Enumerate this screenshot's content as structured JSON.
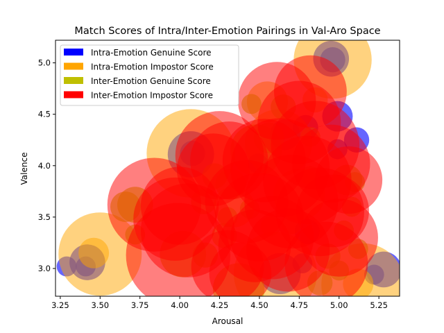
{
  "chart_data": {
    "type": "scatter",
    "title": "Match Scores of Intra/Inter-Emotion Pairings in Val-Aro Space",
    "xlabel": "Arousal",
    "ylabel": "Valence",
    "xlim": [
      3.22,
      5.38
    ],
    "ylim": [
      2.73,
      5.22
    ],
    "xticks": [
      "3.25",
      "3.50",
      "3.75",
      "4.00",
      "4.25",
      "4.50",
      "4.75",
      "5.00",
      "5.25"
    ],
    "yticks": [
      "3.0",
      "3.5",
      "4.0",
      "4.5",
      "5.0"
    ],
    "grid": false,
    "legend_position": "top-left",
    "marker_size_note": "bubble size encodes match score",
    "series": [
      {
        "name": "Intra-Emotion Genuine Score",
        "color": "#0000ff",
        "points": [
          {
            "x": 3.29,
            "y": 3.02,
            "size": 0.3
          },
          {
            "x": 3.42,
            "y": 3.06,
            "size": 0.6
          },
          {
            "x": 3.41,
            "y": 3.02,
            "size": 0.3
          },
          {
            "x": 4.08,
            "y": 4.12,
            "size": 0.4
          },
          {
            "x": 4.07,
            "y": 4.11,
            "size": 0.8
          },
          {
            "x": 4.49,
            "y": 4.02,
            "size": 0.3
          },
          {
            "x": 4.79,
            "y": 4.37,
            "size": 0.4
          },
          {
            "x": 4.8,
            "y": 3.36,
            "size": 0.4
          },
          {
            "x": 4.66,
            "y": 4.3,
            "size": 0.5
          },
          {
            "x": 4.95,
            "y": 5.04,
            "size": 0.6
          },
          {
            "x": 4.96,
            "y": 5.03,
            "size": 0.4
          },
          {
            "x": 4.99,
            "y": 4.48,
            "size": 0.5
          },
          {
            "x": 4.99,
            "y": 4.16,
            "size": 0.3
          },
          {
            "x": 5.11,
            "y": 4.25,
            "size": 0.4
          },
          {
            "x": 5.28,
            "y": 2.99,
            "size": 0.6
          },
          {
            "x": 5.22,
            "y": 2.94,
            "size": 0.3
          },
          {
            "x": 4.77,
            "y": 3.05,
            "size": 0.3
          },
          {
            "x": 4.63,
            "y": 2.95,
            "size": 0.7
          }
        ]
      },
      {
        "name": "Intra-Emotion Impostor Score",
        "color": "#ffa500",
        "points": [
          {
            "x": 3.5,
            "y": 3.14,
            "size": 1.5
          },
          {
            "x": 3.46,
            "y": 3.15,
            "size": 0.5
          },
          {
            "x": 4.07,
            "y": 4.12,
            "size": 1.6
          },
          {
            "x": 4.62,
            "y": 4.22,
            "size": 1.2
          },
          {
            "x": 4.96,
            "y": 5.03,
            "size": 1.4
          },
          {
            "x": 4.55,
            "y": 4.62,
            "size": 0.7
          },
          {
            "x": 4.6,
            "y": 2.95,
            "size": 1.5
          },
          {
            "x": 5.15,
            "y": 2.84,
            "size": 1.5
          },
          {
            "x": 5.12,
            "y": 2.85,
            "size": 0.5
          },
          {
            "x": 4.85,
            "y": 4.64,
            "size": 0.4
          },
          {
            "x": 4.75,
            "y": 3.72,
            "size": 0.9
          },
          {
            "x": 4.34,
            "y": 3.6,
            "size": 0.7
          }
        ]
      },
      {
        "name": "Inter-Emotion Genuine Score",
        "color": "#bfbf00",
        "points": [
          {
            "x": 3.72,
            "y": 3.62,
            "size": 0.6
          },
          {
            "x": 3.66,
            "y": 3.6,
            "size": 0.5
          },
          {
            "x": 3.72,
            "y": 3.33,
            "size": 0.3
          },
          {
            "x": 4.02,
            "y": 3.14,
            "size": 0.8
          },
          {
            "x": 4.15,
            "y": 3.65,
            "size": 0.4
          },
          {
            "x": 4.16,
            "y": 3.13,
            "size": 0.4
          },
          {
            "x": 4.28,
            "y": 3.32,
            "size": 0.4
          },
          {
            "x": 4.3,
            "y": 3.5,
            "size": 0.3
          },
          {
            "x": 4.37,
            "y": 2.8,
            "size": 0.9
          },
          {
            "x": 4.44,
            "y": 3.58,
            "size": 0.3
          },
          {
            "x": 4.45,
            "y": 4.6,
            "size": 0.3
          },
          {
            "x": 4.48,
            "y": 4.15,
            "size": 0.9
          },
          {
            "x": 4.56,
            "y": 4.27,
            "size": 0.5
          },
          {
            "x": 4.57,
            "y": 3.41,
            "size": 0.3
          },
          {
            "x": 4.65,
            "y": 4.57,
            "size": 0.4
          },
          {
            "x": 4.7,
            "y": 3.43,
            "size": 0.3
          },
          {
            "x": 4.82,
            "y": 3.9,
            "size": 0.3
          },
          {
            "x": 4.82,
            "y": 4.28,
            "size": 0.3
          },
          {
            "x": 4.88,
            "y": 2.86,
            "size": 0.4
          },
          {
            "x": 4.93,
            "y": 3.12,
            "size": 0.4
          },
          {
            "x": 5.0,
            "y": 2.98,
            "size": 0.3
          },
          {
            "x": 5.03,
            "y": 3.37,
            "size": 0.3
          },
          {
            "x": 5.05,
            "y": 3.86,
            "size": 0.5
          },
          {
            "x": 5.1,
            "y": 3.84,
            "size": 0.3
          },
          {
            "x": 5.12,
            "y": 3.19,
            "size": 0.3
          },
          {
            "x": 5.08,
            "y": 3.6,
            "size": 0.3
          },
          {
            "x": 4.22,
            "y": 3.9,
            "size": 0.4
          },
          {
            "x": 4.32,
            "y": 3.82,
            "size": 0.5
          }
        ]
      },
      {
        "name": "Inter-Emotion Impostor Score",
        "color": "#ff0000",
        "points": [
          {
            "x": 3.84,
            "y": 3.62,
            "size": 1.7
          },
          {
            "x": 3.99,
            "y": 3.13,
            "size": 1.9
          },
          {
            "x": 3.97,
            "y": 3.48,
            "size": 1.5
          },
          {
            "x": 4.05,
            "y": 3.37,
            "size": 1.7
          },
          {
            "x": 4.0,
            "y": 3.61,
            "size": 1.4
          },
          {
            "x": 4.25,
            "y": 4.1,
            "size": 1.6
          },
          {
            "x": 4.21,
            "y": 3.96,
            "size": 1.3
          },
          {
            "x": 4.31,
            "y": 4.05,
            "size": 1.4
          },
          {
            "x": 4.3,
            "y": 3.02,
            "size": 1.3
          },
          {
            "x": 4.38,
            "y": 2.95,
            "size": 1.1
          },
          {
            "x": 4.42,
            "y": 3.65,
            "size": 1.5
          },
          {
            "x": 4.5,
            "y": 3.5,
            "size": 1.6
          },
          {
            "x": 4.53,
            "y": 4.05,
            "size": 1.5
          },
          {
            "x": 4.58,
            "y": 3.3,
            "size": 1.5
          },
          {
            "x": 4.61,
            "y": 4.63,
            "size": 1.4
          },
          {
            "x": 4.63,
            "y": 3.98,
            "size": 1.8
          },
          {
            "x": 4.7,
            "y": 3.65,
            "size": 1.7
          },
          {
            "x": 4.75,
            "y": 4.42,
            "size": 1.5
          },
          {
            "x": 4.82,
            "y": 4.72,
            "size": 1.3
          },
          {
            "x": 4.85,
            "y": 4.2,
            "size": 1.6
          },
          {
            "x": 4.88,
            "y": 3.55,
            "size": 1.6
          },
          {
            "x": 4.92,
            "y": 3.05,
            "size": 1.5
          },
          {
            "x": 4.95,
            "y": 4.02,
            "size": 1.4
          },
          {
            "x": 5.0,
            "y": 3.3,
            "size": 1.4
          },
          {
            "x": 4.68,
            "y": 3.18,
            "size": 1.5
          },
          {
            "x": 4.8,
            "y": 3.86,
            "size": 1.6
          },
          {
            "x": 5.06,
            "y": 3.86,
            "size": 1.2
          },
          {
            "x": 4.96,
            "y": 3.56,
            "size": 1.3
          },
          {
            "x": 4.47,
            "y": 3.22,
            "size": 1.3
          }
        ]
      }
    ]
  }
}
